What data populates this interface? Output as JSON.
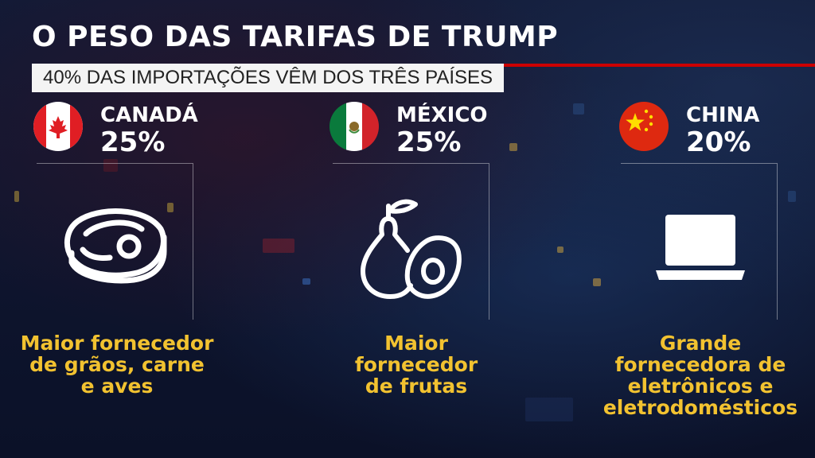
{
  "title": "O PESO DAS TARIFAS DE TRUMP",
  "subtitle": "40% DAS IMPORTAÇÕES VÊM DOS TRÊS PAÍSES",
  "colors": {
    "accent_red": "#cc0000",
    "highlight_yellow": "#f2c230"
  },
  "countries": [
    {
      "name": "CANADÁ",
      "percent": "25%",
      "flag": "canada-flag",
      "icon": "steak-icon",
      "desc": [
        "Maior fornecedor",
        "de grãos, carne",
        "e aves"
      ]
    },
    {
      "name": "MÉXICO",
      "percent": "25%",
      "flag": "mexico-flag",
      "icon": "fruits-icon",
      "desc": [
        "Maior",
        "fornecedor",
        "de frutas"
      ]
    },
    {
      "name": "CHINA",
      "percent": "20%",
      "flag": "china-flag",
      "icon": "laptop-icon",
      "desc": [
        "Grande",
        "fornecedora de",
        "eletrônicos e",
        "eletrodomésticos"
      ]
    }
  ]
}
